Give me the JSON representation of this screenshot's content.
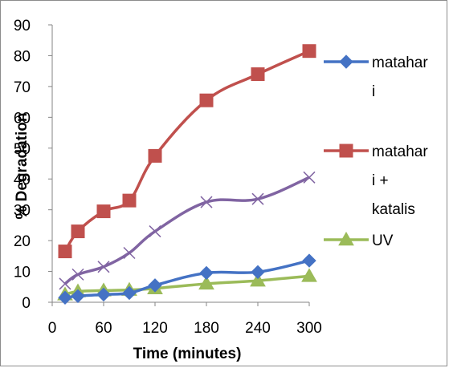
{
  "chart_data": {
    "type": "line",
    "title": "",
    "xlabel": "Time (minutes)",
    "ylabel": "% Degradation",
    "x_ticks": [
      "0",
      "60",
      "120",
      "180",
      "240",
      "300"
    ],
    "y_ticks": [
      "0",
      "10",
      "20",
      "30",
      "40",
      "50",
      "60",
      "70",
      "80",
      "90"
    ],
    "xlim": [
      0,
      300
    ],
    "ylim": [
      0,
      90
    ],
    "grid": false,
    "legend_position": "right",
    "series": [
      {
        "name_lines": [
          "matahar",
          "i"
        ],
        "color": "#4472C4",
        "marker": "diamond",
        "points": [
          [
            15,
            1.5
          ],
          [
            30,
            2
          ],
          [
            60,
            2.5
          ],
          [
            90,
            3
          ],
          [
            120,
            5.5
          ],
          [
            180,
            9.5
          ],
          [
            240,
            9.8
          ],
          [
            300,
            13.5
          ]
        ]
      },
      {
        "name_lines": [
          "matahar",
          "i +",
          "katalis"
        ],
        "color": "#C0504D",
        "marker": "square",
        "points": [
          [
            15,
            16.5
          ],
          [
            30,
            23
          ],
          [
            60,
            29.5
          ],
          [
            90,
            33
          ],
          [
            120,
            47.5
          ],
          [
            180,
            65.5
          ],
          [
            240,
            74
          ],
          [
            300,
            81.5
          ]
        ]
      },
      {
        "name_lines": [],
        "color": "#8064A2",
        "marker": "x",
        "points": [
          [
            15,
            6
          ],
          [
            30,
            9
          ],
          [
            60,
            11.5
          ],
          [
            90,
            16
          ],
          [
            120,
            23
          ],
          [
            180,
            32.5
          ],
          [
            240,
            33.5
          ],
          [
            300,
            40.5
          ]
        ]
      },
      {
        "name_lines": [
          "UV"
        ],
        "color": "#9BBB59",
        "marker": "triangle",
        "points": [
          [
            15,
            2.5
          ],
          [
            30,
            3.5
          ],
          [
            60,
            3.8
          ],
          [
            90,
            4
          ],
          [
            120,
            4.5
          ],
          [
            180,
            6
          ],
          [
            240,
            7
          ],
          [
            300,
            8.5
          ]
        ]
      }
    ]
  }
}
